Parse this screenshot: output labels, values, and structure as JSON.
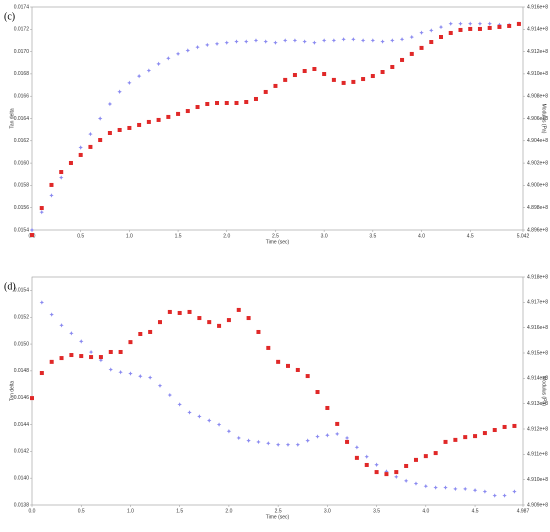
{
  "chart_data": [
    {
      "type": "scatter",
      "title": "(c)",
      "xlabel": "Time (sec)",
      "ylabel": "Tan delta",
      "y2label": "Modulus (Pa)",
      "xlim": [
        0,
        5.042
      ],
      "ylim": [
        0.0154,
        0.0174
      ],
      "y2lim": [
        489600000,
        491600000
      ],
      "xticks": [
        {
          "value": 0,
          "label": "0.0"
        },
        {
          "value": 0.5,
          "label": "0.5"
        },
        {
          "value": 1,
          "label": "1.0"
        },
        {
          "value": 1.5,
          "label": "1.5"
        },
        {
          "value": 2,
          "label": "2.0"
        },
        {
          "value": 2.5,
          "label": "2.5"
        },
        {
          "value": 3,
          "label": "3.0"
        },
        {
          "value": 3.5,
          "label": "3.5"
        },
        {
          "value": 4,
          "label": "4.0"
        },
        {
          "value": 4.5,
          "label": "4.5"
        },
        5.042
      ],
      "yticks": [
        {
          "value": 0.0154,
          "label": "0.0154"
        },
        0.0156,
        0.0158,
        {
          "value": 0.016,
          "label": "0.0160"
        },
        0.0162,
        0.0164,
        0.0166,
        0.0168,
        {
          "value": 0.017,
          "label": "0.0170"
        },
        0.0172,
        0.0174
      ],
      "y2ticks": [
        {
          "value": 489600000,
          "label": "4.896e+8"
        },
        {
          "value": 489800000,
          "label": "4.898e+8"
        },
        {
          "value": 490000000,
          "label": "4.900e+8"
        },
        {
          "value": 490200000,
          "label": "4.902e+8"
        },
        {
          "value": 490400000,
          "label": "4.904e+8"
        },
        {
          "value": 490600000,
          "label": "4.906e+8"
        },
        {
          "value": 490800000,
          "label": "4.908e+8"
        },
        {
          "value": 491000000,
          "label": "4.910e+8"
        },
        {
          "value": 491200000,
          "label": "4.912e+8"
        },
        {
          "value": 491400000,
          "label": "4.914e+8"
        },
        {
          "value": 491600000,
          "label": "4.916e+8"
        }
      ],
      "series": [
        {
          "color": "#8a8af0",
          "marker": "star",
          "x": [
            0,
            0.1,
            0.2,
            0.3,
            0.4,
            0.5,
            0.6,
            0.7,
            0.8,
            0.9,
            1,
            1.1,
            1.2,
            1.3,
            1.4,
            1.5,
            1.6,
            1.7,
            1.8,
            1.9,
            2,
            2.1,
            2.2,
            2.3,
            2.4,
            2.5,
            2.6,
            2.7,
            2.8,
            2.9,
            3,
            3.1,
            3.2,
            3.3,
            3.4,
            3.5,
            3.6,
            3.7,
            3.8,
            3.9,
            4,
            4.1,
            4.2,
            4.3,
            4.4,
            4.5,
            4.6,
            4.7,
            4.8,
            4.9,
            5
          ],
          "values": [
            0.0154,
            0.01556,
            0.01571,
            0.01587,
            0.016,
            0.01614,
            0.01626,
            0.0164,
            0.01653,
            0.01664,
            0.01672,
            0.01678,
            0.01683,
            0.01689,
            0.01694,
            0.01698,
            0.01701,
            0.01704,
            0.01706,
            0.01707,
            0.01708,
            0.01709,
            0.01709,
            0.0171,
            0.01709,
            0.01708,
            0.0171,
            0.0171,
            0.01709,
            0.01708,
            0.0171,
            0.0171,
            0.01711,
            0.01711,
            0.0171,
            0.0171,
            0.01709,
            0.0171,
            0.01711,
            0.01713,
            0.01717,
            0.01719,
            0.01722,
            0.01725,
            0.01725,
            0.01725,
            0.01725,
            0.01725,
            0.01724,
            0.01724,
            0.01725
          ]
        },
        {
          "color": "#e02828",
          "marker": "square",
          "axis": "y2",
          "x": [
            0,
            0.1,
            0.2,
            0.3,
            0.4,
            0.5,
            0.6,
            0.7,
            0.8,
            0.9,
            1,
            1.1,
            1.2,
            1.3,
            1.4,
            1.5,
            1.6,
            1.7,
            1.8,
            1.9,
            2,
            2.1,
            2.2,
            2.3,
            2.4,
            2.5,
            2.6,
            2.7,
            2.8,
            2.9,
            3,
            3.1,
            3.2,
            3.3,
            3.4,
            3.5,
            3.6,
            3.7,
            3.8,
            3.9,
            4,
            4.1,
            4.2,
            4.3,
            4.4,
            4.5,
            4.6,
            4.7,
            4.8,
            4.9,
            5
          ],
          "values": [
            489555000,
            489797000,
            490004000,
            490120000,
            490201000,
            490273000,
            490345000,
            490407000,
            490470000,
            490497000,
            490515000,
            490542000,
            490569000,
            490587000,
            490614000,
            490641000,
            490667000,
            490703000,
            490730000,
            490739000,
            490739000,
            490739000,
            490748000,
            490775000,
            490838000,
            490892000,
            490946000,
            490990000,
            491026000,
            491044000,
            490999000,
            490946000,
            490919000,
            490928000,
            490954000,
            490981000,
            491017000,
            491062000,
            491125000,
            491179000,
            491233000,
            491286000,
            491331000,
            491367000,
            491394000,
            491403000,
            491403000,
            491412000,
            491421000,
            491430000,
            491448000
          ]
        }
      ]
    },
    {
      "type": "scatter",
      "title": "(d)",
      "xlabel": "Time (sec)",
      "ylabel": "Tan delta",
      "y2label": "Modulus (Pa)",
      "xlim": [
        0,
        4.987
      ],
      "ylim": [
        0.0138,
        0.0155
      ],
      "y2lim": [
        490900000,
        491800000
      ],
      "xticks": [
        {
          "value": 0,
          "label": "0.0"
        },
        {
          "value": 0.5,
          "label": "0.5"
        },
        {
          "value": 1,
          "label": "1.0"
        },
        {
          "value": 1.5,
          "label": "1.5"
        },
        {
          "value": 2,
          "label": "2.0"
        },
        {
          "value": 2.5,
          "label": "2.5"
        },
        {
          "value": 3,
          "label": "3.0"
        },
        {
          "value": 3.5,
          "label": "3.5"
        },
        {
          "value": 4,
          "label": "4.0"
        },
        {
          "value": 4.5,
          "label": "4.5"
        },
        4.987
      ],
      "yticks": [
        0.0138,
        {
          "value": 0.014,
          "label": "0.0140"
        },
        0.0142,
        0.0144,
        0.0146,
        0.0148,
        {
          "value": 0.015,
          "label": "0.0150"
        },
        0.0152,
        0.0154
      ],
      "y2ticks": [
        {
          "value": 490900000,
          "label": "4.909e+8"
        },
        {
          "value": 491000000,
          "label": "4.910e+8"
        },
        {
          "value": 491100000,
          "label": "4.911e+8"
        },
        {
          "value": 491200000,
          "label": "4.912e+8"
        },
        {
          "value": 491300000,
          "label": "4.913e+8"
        },
        {
          "value": 491400000,
          "label": "4.914e+8"
        },
        {
          "value": 491500000,
          "label": "4.915e+8"
        },
        {
          "value": 491600000,
          "label": "4.916e+8"
        },
        {
          "value": 491700000,
          "label": "4.917e+8"
        },
        {
          "value": 491800000,
          "label": "4.918e+8"
        }
      ],
      "series": [
        {
          "color": "#8a8af0",
          "marker": "star",
          "x": [
            0.1,
            0.2,
            0.3,
            0.4,
            0.5,
            0.6,
            0.7,
            0.8,
            0.9,
            1,
            1.1,
            1.2,
            1.3,
            1.4,
            1.5,
            1.6,
            1.7,
            1.8,
            1.9,
            2,
            2.1,
            2.2,
            2.3,
            2.4,
            2.5,
            2.6,
            2.7,
            2.8,
            2.9,
            3,
            3.1,
            3.2,
            3.3,
            3.4,
            3.5,
            3.6,
            3.7,
            3.8,
            3.9,
            4,
            4.1,
            4.2,
            4.3,
            4.4,
            4.5,
            4.6,
            4.7,
            4.8,
            4.9
          ],
          "values": [
            0.01531,
            0.01522,
            0.01514,
            0.01508,
            0.01502,
            0.01494,
            0.01488,
            0.01481,
            0.01479,
            0.01478,
            0.01476,
            0.01475,
            0.01469,
            0.01462,
            0.01455,
            0.01449,
            0.01446,
            0.01443,
            0.0144,
            0.01435,
            0.0143,
            0.01428,
            0.01427,
            0.01426,
            0.01425,
            0.01425,
            0.01425,
            0.01428,
            0.01431,
            0.01432,
            0.01433,
            0.0143,
            0.01423,
            0.01416,
            0.0141,
            0.01405,
            0.01401,
            0.01398,
            0.01396,
            0.01394,
            0.01393,
            0.01393,
            0.01392,
            0.01392,
            0.01391,
            0.0139,
            0.01387,
            0.01387,
            0.0139
          ]
        },
        {
          "color": "#e02828",
          "marker": "square",
          "axis": "y2",
          "x": [
            0,
            0.1,
            0.2,
            0.3,
            0.4,
            0.5,
            0.6,
            0.7,
            0.8,
            0.9,
            1,
            1.1,
            1.2,
            1.3,
            1.4,
            1.5,
            1.6,
            1.7,
            1.8,
            1.9,
            2,
            2.1,
            2.2,
            2.3,
            2.4,
            2.5,
            2.6,
            2.7,
            2.8,
            2.9,
            3,
            3.1,
            3.2,
            3.3,
            3.4,
            3.5,
            3.6,
            3.7,
            3.8,
            3.9,
            4,
            4.1,
            4.2,
            4.3,
            4.4,
            4.5,
            4.6,
            4.7,
            4.8,
            4.9
          ],
          "values": [
            491322000,
            491421000,
            491465000,
            491480000,
            491492000,
            491488000,
            491484000,
            491484000,
            491504000,
            491504000,
            491543000,
            491575000,
            491583000,
            491622000,
            491662000,
            491658000,
            491662000,
            491638000,
            491622000,
            491607000,
            491630000,
            491670000,
            491638000,
            491583000,
            491520000,
            491465000,
            491449000,
            491433000,
            491409000,
            491346000,
            491283000,
            491220000,
            491149000,
            491086000,
            491058000,
            491030000,
            491022000,
            491030000,
            491054000,
            491078000,
            491093000,
            491105000,
            491149000,
            491157000,
            491168000,
            491172000,
            491184000,
            491196000,
            491208000,
            491212000
          ]
        }
      ]
    }
  ]
}
